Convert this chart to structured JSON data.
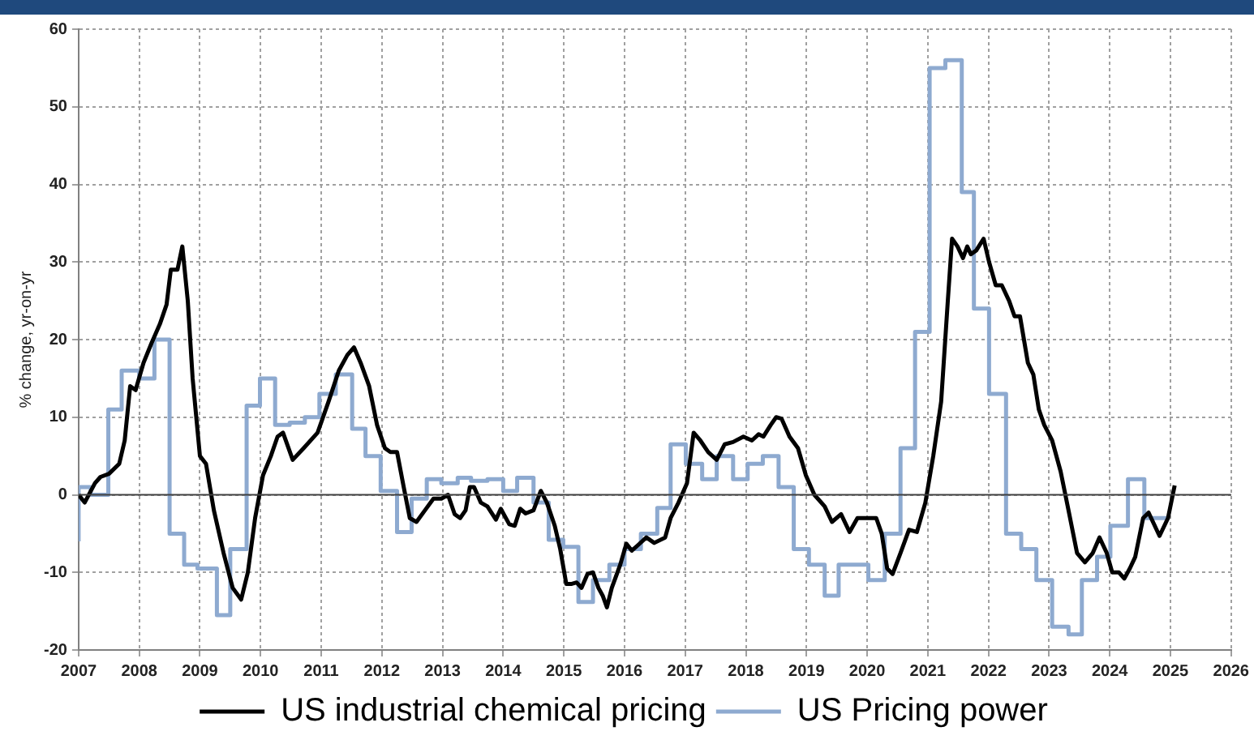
{
  "chart_data": {
    "type": "line",
    "ylabel": "% change, yr-on-yr",
    "xlim": [
      2007,
      2026
    ],
    "xticks": [
      2007,
      2008,
      2009,
      2010,
      2011,
      2012,
      2013,
      2014,
      2015,
      2016,
      2017,
      2018,
      2019,
      2020,
      2021,
      2022,
      2023,
      2024,
      2025,
      2026
    ],
    "ylim": [
      -20,
      60
    ],
    "yticks": [
      -20,
      -10,
      0,
      10,
      20,
      30,
      40,
      50,
      60
    ],
    "grid": true,
    "legend": "bottom",
    "ref_lines": [
      {
        "axis": "y",
        "value": 0,
        "color": "#404040"
      }
    ],
    "series": [
      {
        "name": "US industrial chemical pricing",
        "type": "line",
        "color": "#000000",
        "x": [
          2007,
          2007.1,
          2007.27,
          2007.36,
          2007.5,
          2007.67,
          2007.76,
          2007.85,
          2007.94,
          2008.07,
          2008.2,
          2008.34,
          2008.45,
          2008.52,
          2008.63,
          2008.71,
          2008.8,
          2008.88,
          2009,
          2009.1,
          2009.23,
          2009.39,
          2009.54,
          2009.68,
          2009.79,
          2009.91,
          2010.04,
          2010.17,
          2010.28,
          2010.37,
          2010.53,
          2010.71,
          2010.94,
          2011.12,
          2011.29,
          2011.43,
          2011.54,
          2011.65,
          2011.79,
          2011.92,
          2012.05,
          2012.14,
          2012.25,
          2012.36,
          2012.46,
          2012.57,
          2012.71,
          2012.85,
          2012.98,
          2013.09,
          2013.2,
          2013.29,
          2013.38,
          2013.45,
          2013.52,
          2013.63,
          2013.74,
          2013.88,
          2013.96,
          2014.1,
          2014.19,
          2014.28,
          2014.37,
          2014.5,
          2014.62,
          2014.72,
          2014.85,
          2014.94,
          2015.04,
          2015.12,
          2015.21,
          2015.29,
          2015.39,
          2015.48,
          2015.57,
          2015.64,
          2015.71,
          2015.79,
          2015.93,
          2016.03,
          2016.12,
          2016.22,
          2016.36,
          2016.49,
          2016.67,
          2016.76,
          2016.89,
          2017.03,
          2017.14,
          2017.25,
          2017.38,
          2017.52,
          2017.65,
          2017.79,
          2017.96,
          2018.1,
          2018.21,
          2018.29,
          2018.41,
          2018.5,
          2018.59,
          2018.72,
          2018.86,
          2018.99,
          2019.13,
          2019.3,
          2019.42,
          2019.57,
          2019.71,
          2019.84,
          2019.97,
          2020.15,
          2020.24,
          2020.33,
          2020.42,
          2020.55,
          2020.69,
          2020.82,
          2020.96,
          2021.09,
          2021.22,
          2021.33,
          2021.4,
          2021.49,
          2021.58,
          2021.65,
          2021.71,
          2021.8,
          2021.92,
          2022.01,
          2022.12,
          2022.22,
          2022.34,
          2022.43,
          2022.52,
          2022.65,
          2022.74,
          2022.83,
          2022.92,
          2023.05,
          2023.19,
          2023.32,
          2023.46,
          2023.59,
          2023.72,
          2023.83,
          2023.95,
          2024.04,
          2024.15,
          2024.24,
          2024.33,
          2024.42,
          2024.55,
          2024.64,
          2024.82,
          2024.96,
          2025.07
        ],
        "values": [
          0,
          -1,
          1.5,
          2.3,
          2.7,
          4,
          7,
          14,
          13.5,
          17,
          19.5,
          22,
          24.5,
          29,
          29,
          32,
          25,
          15,
          5,
          4,
          -2,
          -7.5,
          -12,
          -13.5,
          -10,
          -3,
          2.5,
          5,
          7.5,
          8,
          4.5,
          6,
          8,
          12,
          16,
          18,
          19,
          17,
          14,
          9,
          6,
          5.5,
          5.5,
          1,
          -3,
          -3.5,
          -2,
          -0.5,
          -0.5,
          0,
          -2.5,
          -3,
          -2,
          1,
          1,
          -1,
          -1.5,
          -3.2,
          -1.8,
          -3.8,
          -4,
          -1.8,
          -2.4,
          -2,
          0.5,
          -1,
          -4,
          -7,
          -11.5,
          -11.5,
          -11.3,
          -12,
          -10.2,
          -10,
          -12,
          -13,
          -14.5,
          -12,
          -9,
          -6.3,
          -7.2,
          -6.5,
          -5.5,
          -6.2,
          -5.5,
          -3,
          -1,
          1.5,
          8,
          7,
          5.5,
          4.5,
          6.5,
          6.8,
          7.5,
          7,
          7.8,
          7.5,
          9,
          10,
          9.8,
          7.5,
          6,
          2.5,
          0,
          -1.5,
          -3.5,
          -2.5,
          -4.8,
          -3,
          -3,
          -3,
          -5,
          -9.5,
          -10.2,
          -7.5,
          -4.5,
          -4.8,
          -1,
          5,
          12,
          25,
          33,
          32,
          30.5,
          32,
          31,
          31.5,
          33,
          30,
          27,
          27,
          25,
          23,
          23,
          17,
          15.5,
          11,
          9,
          7,
          3,
          -2,
          -7.5,
          -8.7,
          -7.5,
          -5.5,
          -7.5,
          -10,
          -10,
          -10.8,
          -9.5,
          -8,
          -3,
          -2.3,
          -5.3,
          -3,
          1.2
        ]
      },
      {
        "name": "US Pricing power",
        "type": "step",
        "color": "#8eaad0",
        "x": [
          2007,
          2007.2,
          2007.49,
          2007.71,
          2008,
          2008.25,
          2008.5,
          2008.74,
          2008.96,
          2009.28,
          2009.5,
          2009.77,
          2009.99,
          2010.24,
          2010.48,
          2010.73,
          2010.97,
          2011.24,
          2011.51,
          2011.73,
          2011.98,
          2012.25,
          2012.49,
          2012.74,
          2012.98,
          2013.25,
          2013.47,
          2013.74,
          2014,
          2014.23,
          2014.5,
          2014.75,
          2014.99,
          2015.24,
          2015.48,
          2015.75,
          2016,
          2016.27,
          2016.54,
          2016.76,
          2017.01,
          2017.28,
          2017.52,
          2017.79,
          2018.03,
          2018.28,
          2018.54,
          2018.79,
          2019.04,
          2019.3,
          2019.53,
          2020.02,
          2020.29,
          2020.55,
          2020.79,
          2021.03,
          2021.29,
          2021.56,
          2021.76,
          2022.01,
          2022.29,
          2022.54,
          2022.79,
          2023.05,
          2023.32,
          2023.54,
          2023.79,
          2024.01,
          2024.3,
          2024.57,
          2024.75,
          2024.97
        ],
        "values": [
          -6,
          1,
          0,
          11,
          16,
          15,
          20,
          -5,
          -9,
          -9.5,
          -15.5,
          -7,
          11.5,
          15,
          9,
          9.3,
          10,
          13,
          15.5,
          8.5,
          5,
          0.5,
          -4.8,
          -0.5,
          2,
          1.5,
          2.2,
          1.8,
          2,
          0.5,
          2.2,
          -1,
          -5.8,
          -6.7,
          -13.8,
          -11,
          -9,
          -7,
          -5,
          -1.7,
          6.5,
          4,
          2,
          5,
          2,
          4,
          5,
          1,
          -7,
          -9,
          -13,
          -9,
          -11,
          -5,
          6,
          21,
          55,
          56,
          39,
          24,
          13,
          -5,
          -7,
          -11,
          -17,
          -18,
          -11,
          -8,
          -4,
          2,
          -3,
          -3
        ]
      }
    ]
  }
}
